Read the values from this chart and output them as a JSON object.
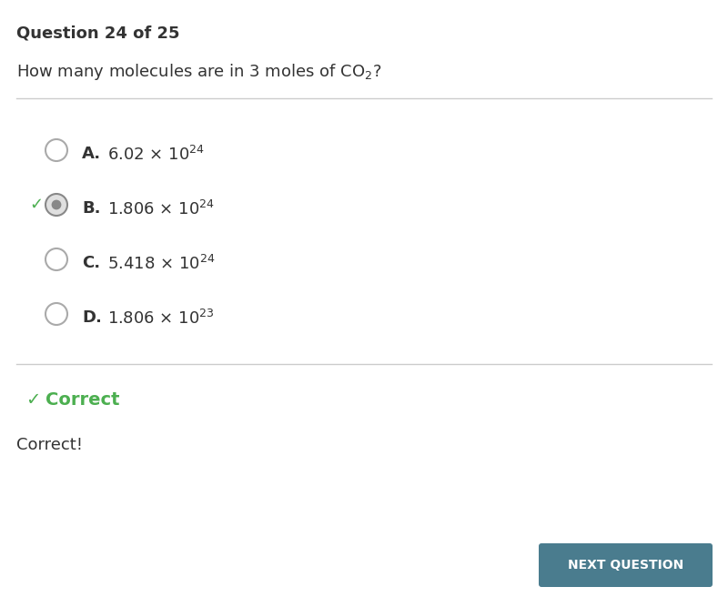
{
  "background_color": "#ffffff",
  "header_text": "Question 24 of 25",
  "options": [
    {
      "label": "A.",
      "text": "6.02 × 10",
      "superscript": "24",
      "selected": false,
      "correct": false
    },
    {
      "label": "B.",
      "text": "1.806 × 10",
      "superscript": "24",
      "selected": true,
      "correct": true
    },
    {
      "label": "C.",
      "text": "5.418 × 10",
      "superscript": "24",
      "selected": false,
      "correct": false
    },
    {
      "label": "D.",
      "text": "1.806 × 10",
      "superscript": "23",
      "selected": false,
      "correct": false
    }
  ],
  "correct_label": "Correct",
  "correct_message": "Correct!",
  "button_text": "NEXT QUESTION",
  "button_color": "#4a7c8e",
  "button_text_color": "#ffffff",
  "check_color": "#4caf50",
  "separator_color": "#cccccc",
  "text_color": "#333333",
  "circle_color": "#aaaaaa",
  "selected_circle_fill": "#e0e0e0",
  "selected_circle_edge": "#888888",
  "selected_inner_color": "#888888"
}
